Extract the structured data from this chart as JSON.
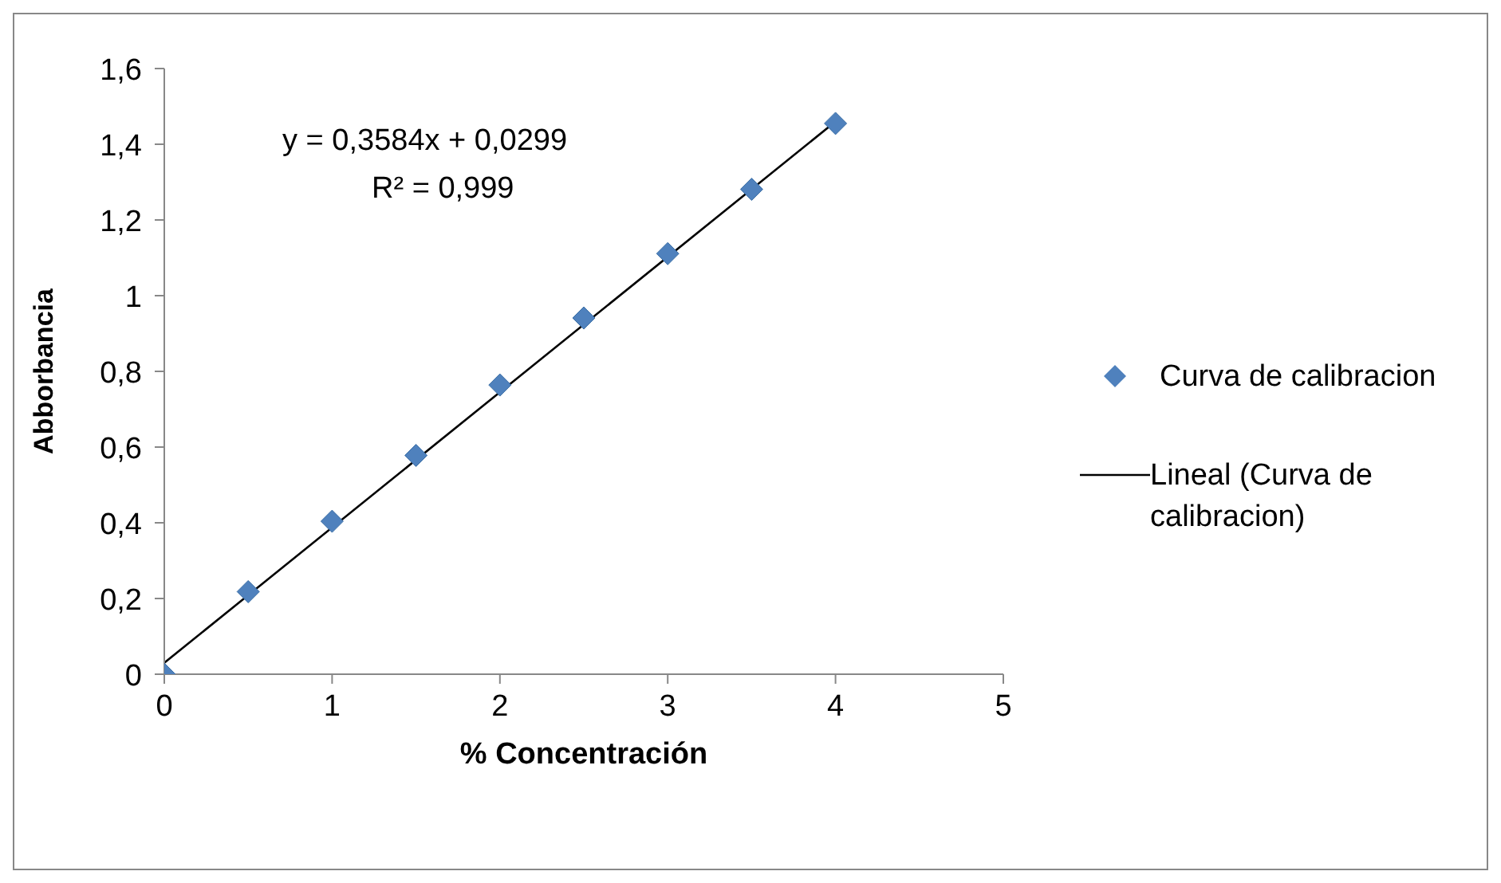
{
  "chart_data": {
    "type": "scatter",
    "xlabel": "% Concentración",
    "ylabel": "Abborbancia",
    "x": [
      0,
      0.5,
      1,
      1.5,
      2,
      2.5,
      3,
      3.5,
      4
    ],
    "series": [
      {
        "name": "Curva de calibracion",
        "color": "#4f81bd",
        "marker": "diamond",
        "values": [
          0,
          0.218,
          0.404,
          0.578,
          0.764,
          0.941,
          1.111,
          1.281,
          1.455
        ]
      },
      {
        "name": "Lineal (Curva de calibracion)",
        "type": "line",
        "color": "#000000",
        "marker": "none",
        "x": [
          0,
          4
        ],
        "values": [
          0.03,
          1.46
        ]
      }
    ],
    "annotations": [
      "y = 0,3584x + 0,0299",
      "R² = 0,999"
    ],
    "xlim": [
      0,
      5
    ],
    "xticks": [
      0,
      1,
      2,
      3,
      4,
      5
    ],
    "ylim": [
      0,
      1.6
    ],
    "yticks": [
      0,
      {
        "value": 0.2,
        "label": "0,2"
      },
      {
        "value": 0.4,
        "label": "0,4"
      },
      {
        "value": 0.6,
        "label": "0,6"
      },
      {
        "value": 0.8,
        "label": "0,8"
      },
      1,
      {
        "value": 1.2,
        "label": "1,2"
      },
      {
        "value": 1.4,
        "label": "1,4"
      },
      {
        "value": 1.6,
        "label": "1,6"
      }
    ],
    "grid": false,
    "legend": "right"
  }
}
